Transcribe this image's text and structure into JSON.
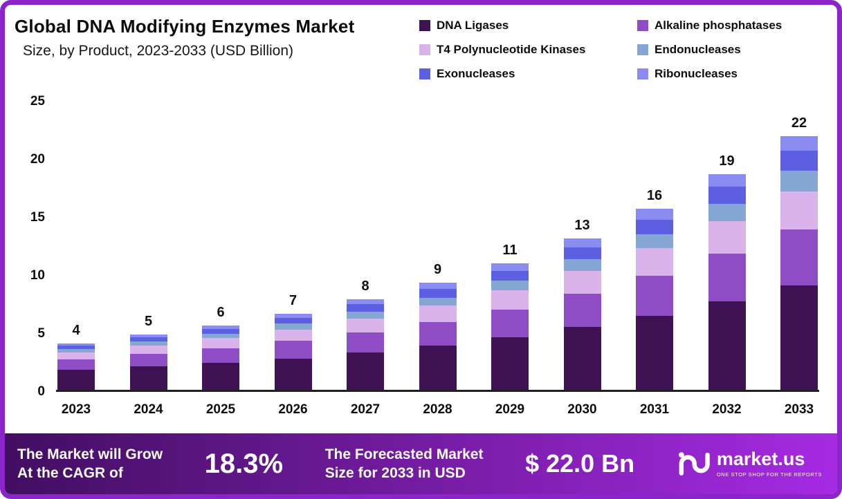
{
  "header": {
    "title": "Global DNA Modifying Enzymes Market",
    "subtitle": "Size, by Product, 2023-2033 (USD Billion)"
  },
  "chart_data": {
    "type": "bar",
    "stacked": true,
    "title": "Global DNA Modifying Enzymes Market Size, by Product, 2023-2033 (USD Billion)",
    "categories": [
      "2023",
      "2024",
      "2025",
      "2026",
      "2027",
      "2028",
      "2029",
      "2030",
      "2031",
      "2032",
      "2033"
    ],
    "totals_labels": [
      "4",
      "5",
      "6",
      "7",
      "8",
      "9",
      "11",
      "13",
      "16",
      "19",
      "22"
    ],
    "series": [
      {
        "name": "DNA Ligases",
        "color": "#3f1254",
        "values": [
          1.7,
          2.0,
          2.3,
          2.7,
          3.2,
          3.8,
          4.5,
          5.4,
          6.4,
          7.6,
          9.0
        ]
      },
      {
        "name": "Alkaline phosphatases",
        "color": "#8e4dc5",
        "values": [
          0.9,
          1.1,
          1.3,
          1.5,
          1.75,
          2.05,
          2.4,
          2.9,
          3.45,
          4.1,
          4.8
        ]
      },
      {
        "name": "T4 Polynucleotide Kinases",
        "color": "#d9b3ea",
        "values": [
          0.6,
          0.7,
          0.85,
          1.0,
          1.2,
          1.4,
          1.65,
          1.95,
          2.35,
          2.8,
          3.3
        ]
      },
      {
        "name": "Endonucleases",
        "color": "#86a7d4",
        "values": [
          0.3,
          0.35,
          0.4,
          0.5,
          0.6,
          0.7,
          0.85,
          1.0,
          1.2,
          1.5,
          1.8
        ]
      },
      {
        "name": "Exonucleases",
        "color": "#5c5fe0",
        "values": [
          0.3,
          0.35,
          0.4,
          0.5,
          0.6,
          0.75,
          0.85,
          1.0,
          1.25,
          1.5,
          1.7
        ]
      },
      {
        "name": "Ribonucleases",
        "color": "#8a8cf0",
        "values": [
          0.2,
          0.25,
          0.3,
          0.35,
          0.45,
          0.55,
          0.65,
          0.8,
          0.95,
          1.1,
          1.25
        ]
      }
    ],
    "xlabel": "",
    "ylabel": "",
    "ylim": [
      0,
      25
    ],
    "yticks": [
      25,
      20,
      15,
      10,
      5,
      0
    ],
    "grid": false,
    "legend_position": "top-right"
  },
  "banner": {
    "left_line1": "The Market will Grow",
    "left_line2": "At the CAGR of",
    "cagr": "18.3%",
    "mid_line1": "The Forecasted Market",
    "mid_line2": "Size for 2033 in USD",
    "value": "$ 22.0 Bn",
    "brand": "market.us",
    "brand_tagline": "ONE STOP SHOP FOR THE REPORTS"
  },
  "colors": {
    "frame_border": "#8b24cb",
    "banner_gradient_start": "#420e61",
    "banner_gradient_end": "#a62ae3",
    "axis_line": "#1f1f1f"
  }
}
